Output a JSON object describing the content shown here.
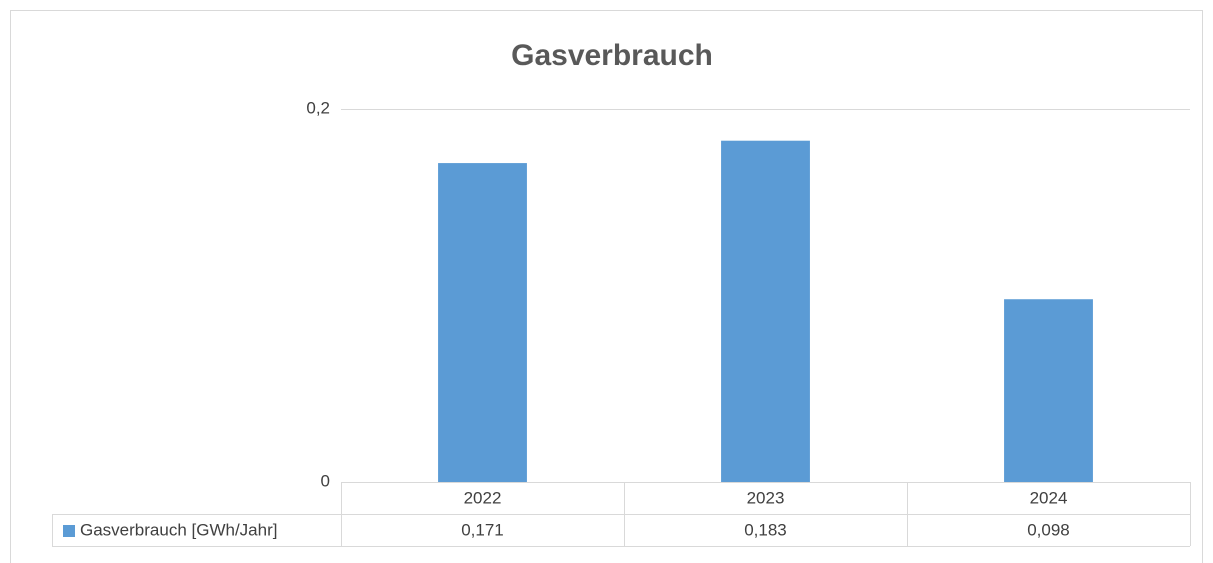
{
  "chart_data": {
    "type": "bar",
    "title": "Gasverbrauch",
    "categories": [
      "2022",
      "2023",
      "2024"
    ],
    "series": [
      {
        "name": "Gasverbrauch [GWh/Jahr]",
        "color": "#5b9bd5",
        "values": [
          0.171,
          0.183,
          0.098
        ],
        "value_labels": [
          "0,171",
          "0,183",
          "0,098"
        ]
      }
    ],
    "ylim": [
      0,
      0.2
    ],
    "yticks": [
      0,
      {
        "value": 0.2,
        "label": "0,2"
      }
    ],
    "grid": true
  }
}
